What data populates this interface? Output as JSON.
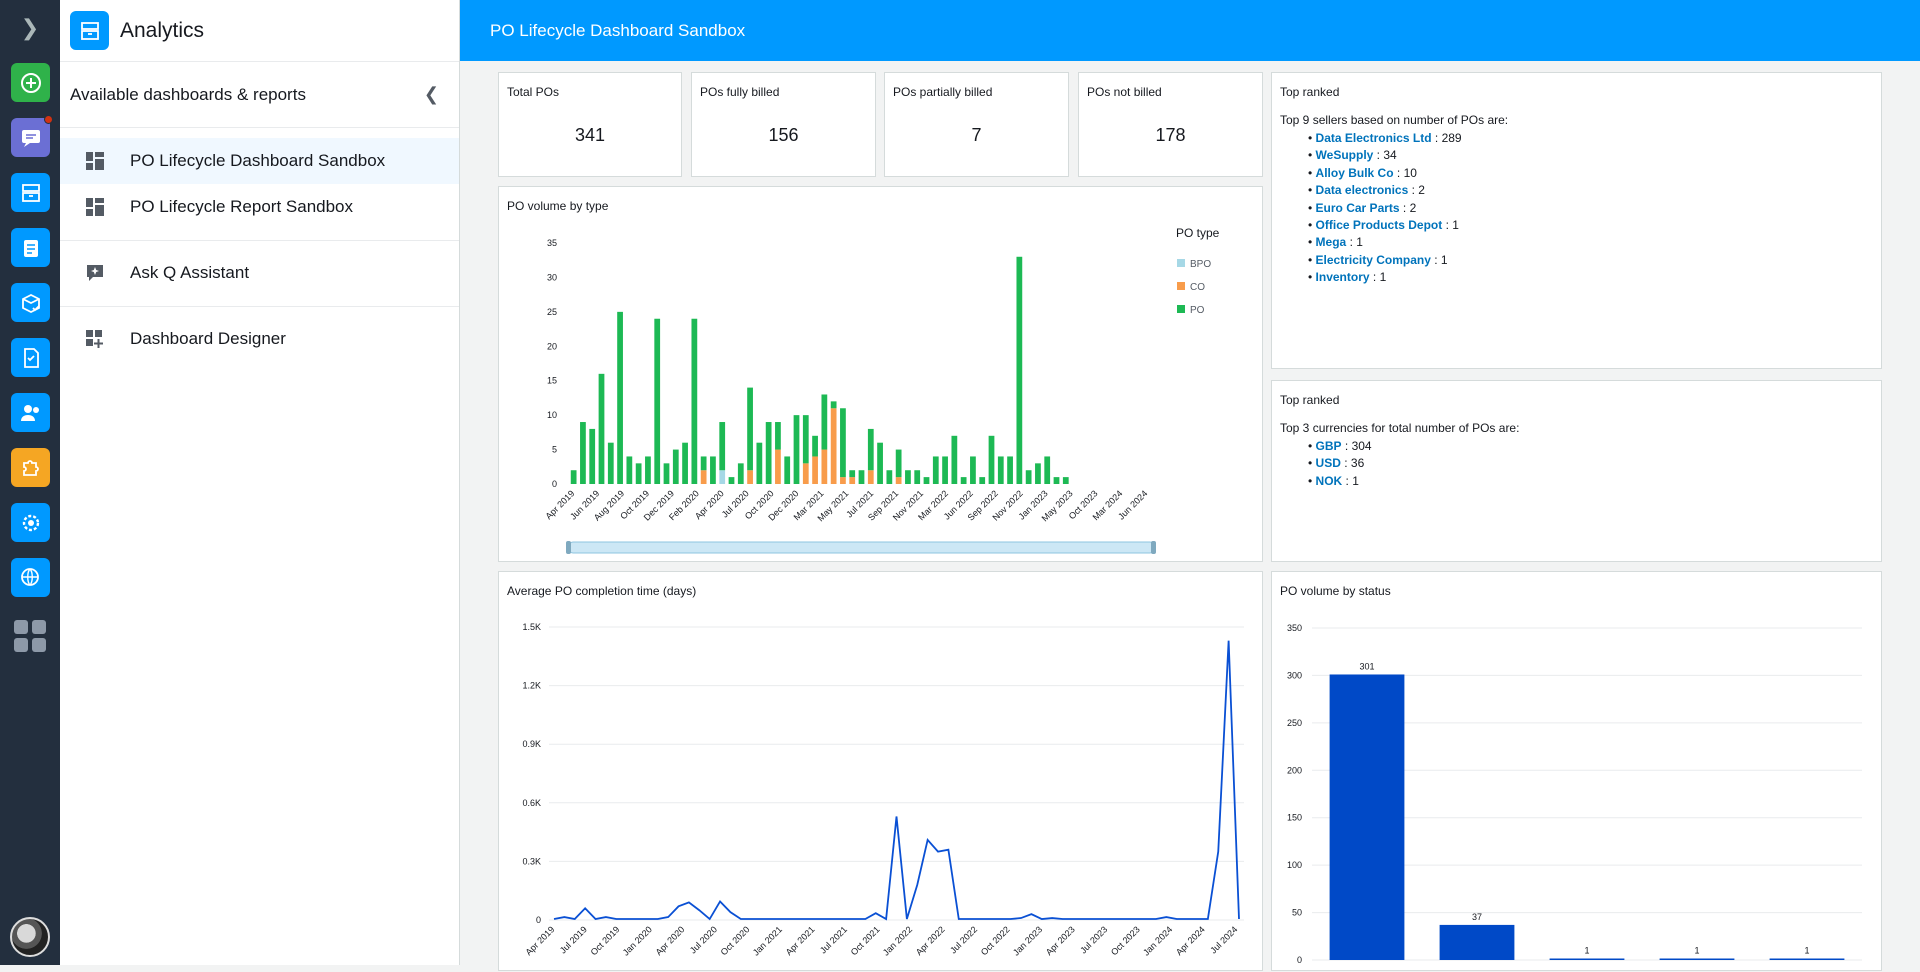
{
  "app": {
    "title": "Analytics"
  },
  "side": {
    "subtitle": "Available dashboards & reports",
    "items": [
      {
        "label": "PO Lifecycle Dashboard Sandbox",
        "icon": "dashboard-icon"
      },
      {
        "label": "PO Lifecycle Report Sandbox",
        "icon": "dashboard-icon"
      },
      {
        "label": "Ask Q Assistant",
        "icon": "sparkle-chat-icon"
      },
      {
        "label": "Dashboard Designer",
        "icon": "dashboard-add-icon"
      }
    ]
  },
  "header": {
    "title": "PO Lifecycle Dashboard Sandbox"
  },
  "kpis": [
    {
      "label": "Total POs",
      "value": "341"
    },
    {
      "label": "POs fully billed",
      "value": "156"
    },
    {
      "label": "POs partially billed",
      "value": "7"
    },
    {
      "label": "POs not billed",
      "value": "178"
    }
  ],
  "colors": {
    "po": "#1db954",
    "co": "#f89c4b",
    "bpo": "#a6d8e6",
    "line": "#0a50d4",
    "status_bar": "#0049c7",
    "accent": "#0099ff",
    "link": "#0073bb"
  },
  "ranked_sellers": {
    "title": "Top ranked",
    "intro": "Top 9 sellers based on number of POs are:",
    "items": [
      {
        "name": "Data Electronics Ltd",
        "value": " : 289"
      },
      {
        "name": "WeSupply",
        "value": " : 34"
      },
      {
        "name": "Alloy Bulk Co",
        "value": " : 10"
      },
      {
        "name": "Data electronics",
        "value": " : 2"
      },
      {
        "name": "Euro Car Parts",
        "value": " : 2"
      },
      {
        "name": "Office Products Depot",
        "value": " : 1"
      },
      {
        "name": "Mega",
        "value": " : 1"
      },
      {
        "name": "Electricity Company",
        "value": " : 1"
      },
      {
        "name": "Inventory",
        "value": " : 1"
      }
    ]
  },
  "ranked_currencies": {
    "title": "Top ranked",
    "intro": "Top 3 currencies for total number of POs are:",
    "items": [
      {
        "name": "GBP",
        "value": " : 304"
      },
      {
        "name": "USD",
        "value": " : 36"
      },
      {
        "name": "NOK",
        "value": " : 1"
      }
    ]
  },
  "chart_data": [
    {
      "type": "bar",
      "stacked": true,
      "title": "PO volume by type",
      "legend_title": "PO type",
      "legend_position": "right",
      "ylim": [
        0,
        35
      ],
      "yticks": [
        0,
        5,
        10,
        15,
        20,
        25,
        30,
        35
      ],
      "tick_labels": [
        "Apr 2019",
        "Jun 2019",
        "Aug 2019",
        "Oct 2019",
        "Dec 2019",
        "Feb 2020",
        "Apr 2020",
        "Jul 2020",
        "Oct 2020",
        "Dec 2020",
        "Mar 2021",
        "May 2021",
        "Jul 2021",
        "Sep 2021",
        "Nov 2021",
        "Mar 2022",
        "Jun 2022",
        "Sep 2022",
        "Nov 2022",
        "Jan 2023",
        "May 2023",
        "Oct 2023",
        "Mar 2024",
        "Jun 2024"
      ],
      "series": [
        {
          "name": "BPO",
          "values": [
            0,
            0,
            0,
            0,
            0,
            0,
            0,
            0,
            0,
            0,
            0,
            0,
            0,
            0,
            0,
            0,
            2,
            0,
            0,
            0,
            0,
            0,
            0,
            0,
            0,
            0,
            0,
            0,
            0,
            0,
            0,
            0,
            0,
            0,
            0,
            0,
            0,
            0,
            0,
            0,
            0,
            0,
            0,
            0,
            0,
            0,
            0,
            0,
            0,
            0,
            0,
            0,
            0,
            0,
            0,
            0,
            0,
            0,
            0,
            0,
            0,
            0,
            0
          ]
        },
        {
          "name": "CO",
          "values": [
            0,
            0,
            0,
            0,
            0,
            0,
            0,
            0,
            0,
            0,
            0,
            0,
            0,
            0,
            2,
            0,
            0,
            0,
            0,
            2,
            0,
            0,
            5,
            0,
            0,
            3,
            4,
            5,
            11,
            1,
            1,
            0,
            2,
            0,
            0,
            1,
            0,
            0,
            0,
            0,
            0,
            0,
            0,
            0,
            0,
            0,
            0,
            0,
            0,
            0,
            0,
            0,
            0,
            0,
            0,
            0,
            0,
            0,
            0,
            0,
            0,
            0,
            0
          ]
        },
        {
          "name": "PO",
          "values": [
            2,
            9,
            8,
            16,
            6,
            25,
            4,
            3,
            4,
            24,
            3,
            5,
            6,
            24,
            2,
            4,
            7,
            1,
            3,
            12,
            6,
            9,
            4,
            4,
            10,
            7,
            3,
            8,
            1,
            10,
            1,
            2,
            6,
            6,
            2,
            4,
            2,
            2,
            1,
            4,
            4,
            7,
            1,
            4,
            1,
            7,
            4,
            4,
            33,
            2,
            3,
            4,
            1,
            1,
            0,
            0,
            0,
            0,
            0,
            0,
            0,
            0,
            0
          ]
        }
      ]
    },
    {
      "type": "line",
      "title": "Average PO completion time (days)",
      "ylim": [
        0,
        1500
      ],
      "ytick_labels": [
        "0",
        "0.3K",
        "0.6K",
        "0.9K",
        "1.2K",
        "1.5K"
      ],
      "tick_labels": [
        "Apr 2019",
        "Jul 2019",
        "Oct 2019",
        "Jan 2020",
        "Apr 2020",
        "Jul 2020",
        "Oct 2020",
        "Jan 2021",
        "Apr 2021",
        "Jul 2021",
        "Oct 2021",
        "Jan 2022",
        "Apr 2022",
        "Jul 2022",
        "Oct 2022",
        "Jan 2023",
        "Apr 2023",
        "Jul 2023",
        "Oct 2023",
        "Jan 2024",
        "Apr 2024",
        "Jul 2024"
      ],
      "series": [
        {
          "name": "",
          "values": [
            5,
            15,
            5,
            60,
            5,
            15,
            5,
            5,
            5,
            5,
            5,
            15,
            70,
            90,
            50,
            5,
            95,
            40,
            5,
            5,
            5,
            5,
            5,
            5,
            5,
            5,
            5,
            5,
            5,
            5,
            5,
            35,
            5,
            530,
            5,
            180,
            410,
            350,
            360,
            5,
            5,
            5,
            5,
            5,
            5,
            10,
            30,
            5,
            10,
            5,
            5,
            5,
            5,
            5,
            5,
            5,
            5,
            5,
            5,
            15,
            5,
            5,
            5,
            5,
            350,
            1430,
            5
          ]
        }
      ]
    },
    {
      "type": "bar",
      "title": "PO volume by status",
      "ylim": [
        0,
        350
      ],
      "yticks": [
        0,
        50,
        100,
        150,
        200,
        250,
        300,
        350
      ],
      "values": [
        301,
        37,
        1,
        1,
        1
      ],
      "data_labels": [
        "301",
        "37",
        "1",
        "1",
        "1"
      ]
    }
  ]
}
